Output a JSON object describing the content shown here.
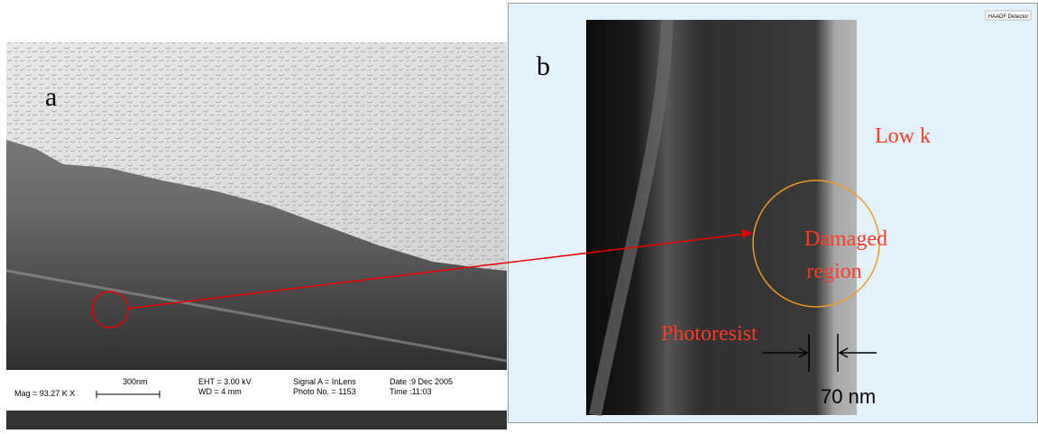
{
  "panel_a": {
    "label": "a",
    "info": {
      "mag": "Mag = 93.27 K X",
      "scale": "300nm",
      "eht": "EHT = 3.00 kV",
      "wd": "WD =   4 mm",
      "signal": "Signal A = InLens",
      "photo": "Photo No. = 1153",
      "date": "Date :9 Dec 2005",
      "time": "Time :11:03"
    }
  },
  "panel_b": {
    "label": "b",
    "detector": "HAADF Detector",
    "low_k": "Low k",
    "damaged": [
      "Damaged",
      "region"
    ],
    "photoresist": "Photoresist",
    "width": "70 nm"
  }
}
